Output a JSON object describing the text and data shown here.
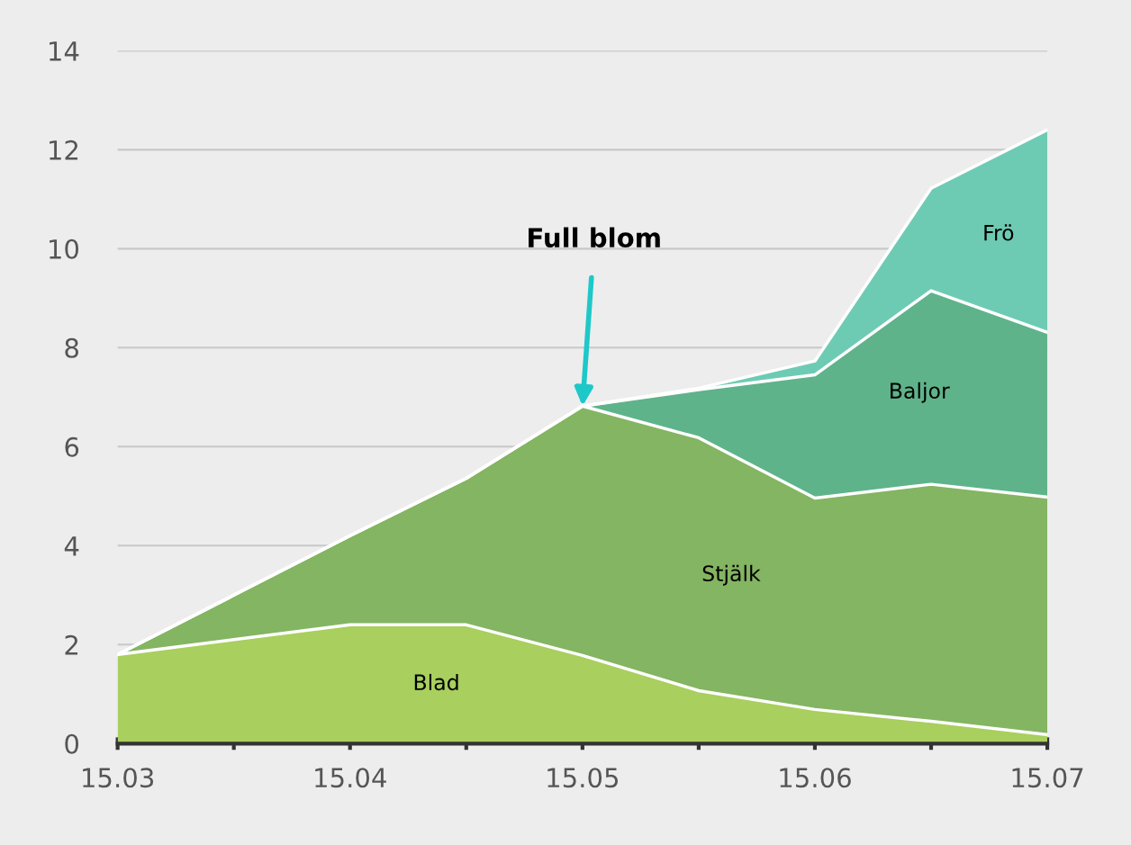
{
  "chart_data": {
    "type": "area",
    "stacked": true,
    "categories": [
      "15.03",
      null,
      "15.04",
      null,
      "15.05",
      null,
      "15.06",
      null,
      "15.07"
    ],
    "series": [
      {
        "name": "Blad",
        "color": "#a9cf5e",
        "values": [
          1.8,
          2.1,
          2.4,
          2.4,
          1.78,
          1.07,
          0.69,
          0.45,
          0.18
        ]
      },
      {
        "name": "Stjälk",
        "color": "#84b562",
        "values": [
          0,
          0.9,
          1.8,
          2.96,
          5.04,
          5.11,
          4.27,
          4.79,
          4.8
        ]
      },
      {
        "name": "Baljor",
        "color": "#5fb38a",
        "values": [
          0,
          0,
          0,
          0,
          0,
          0.97,
          2.49,
          3.91,
          3.33
        ]
      },
      {
        "name": "Frö",
        "color": "#6ecbb3",
        "values": [
          0,
          0,
          0,
          0,
          0,
          0.03,
          0.28,
          2.07,
          4.09
        ]
      }
    ],
    "ylim": [
      0,
      14
    ],
    "yticks": [
      0,
      2,
      4,
      6,
      8,
      10,
      12,
      14
    ],
    "grid": "y",
    "legend": false,
    "annotations": [
      {
        "text": "Full blom",
        "x": "15.05",
        "y": 6.82
      }
    ]
  }
}
